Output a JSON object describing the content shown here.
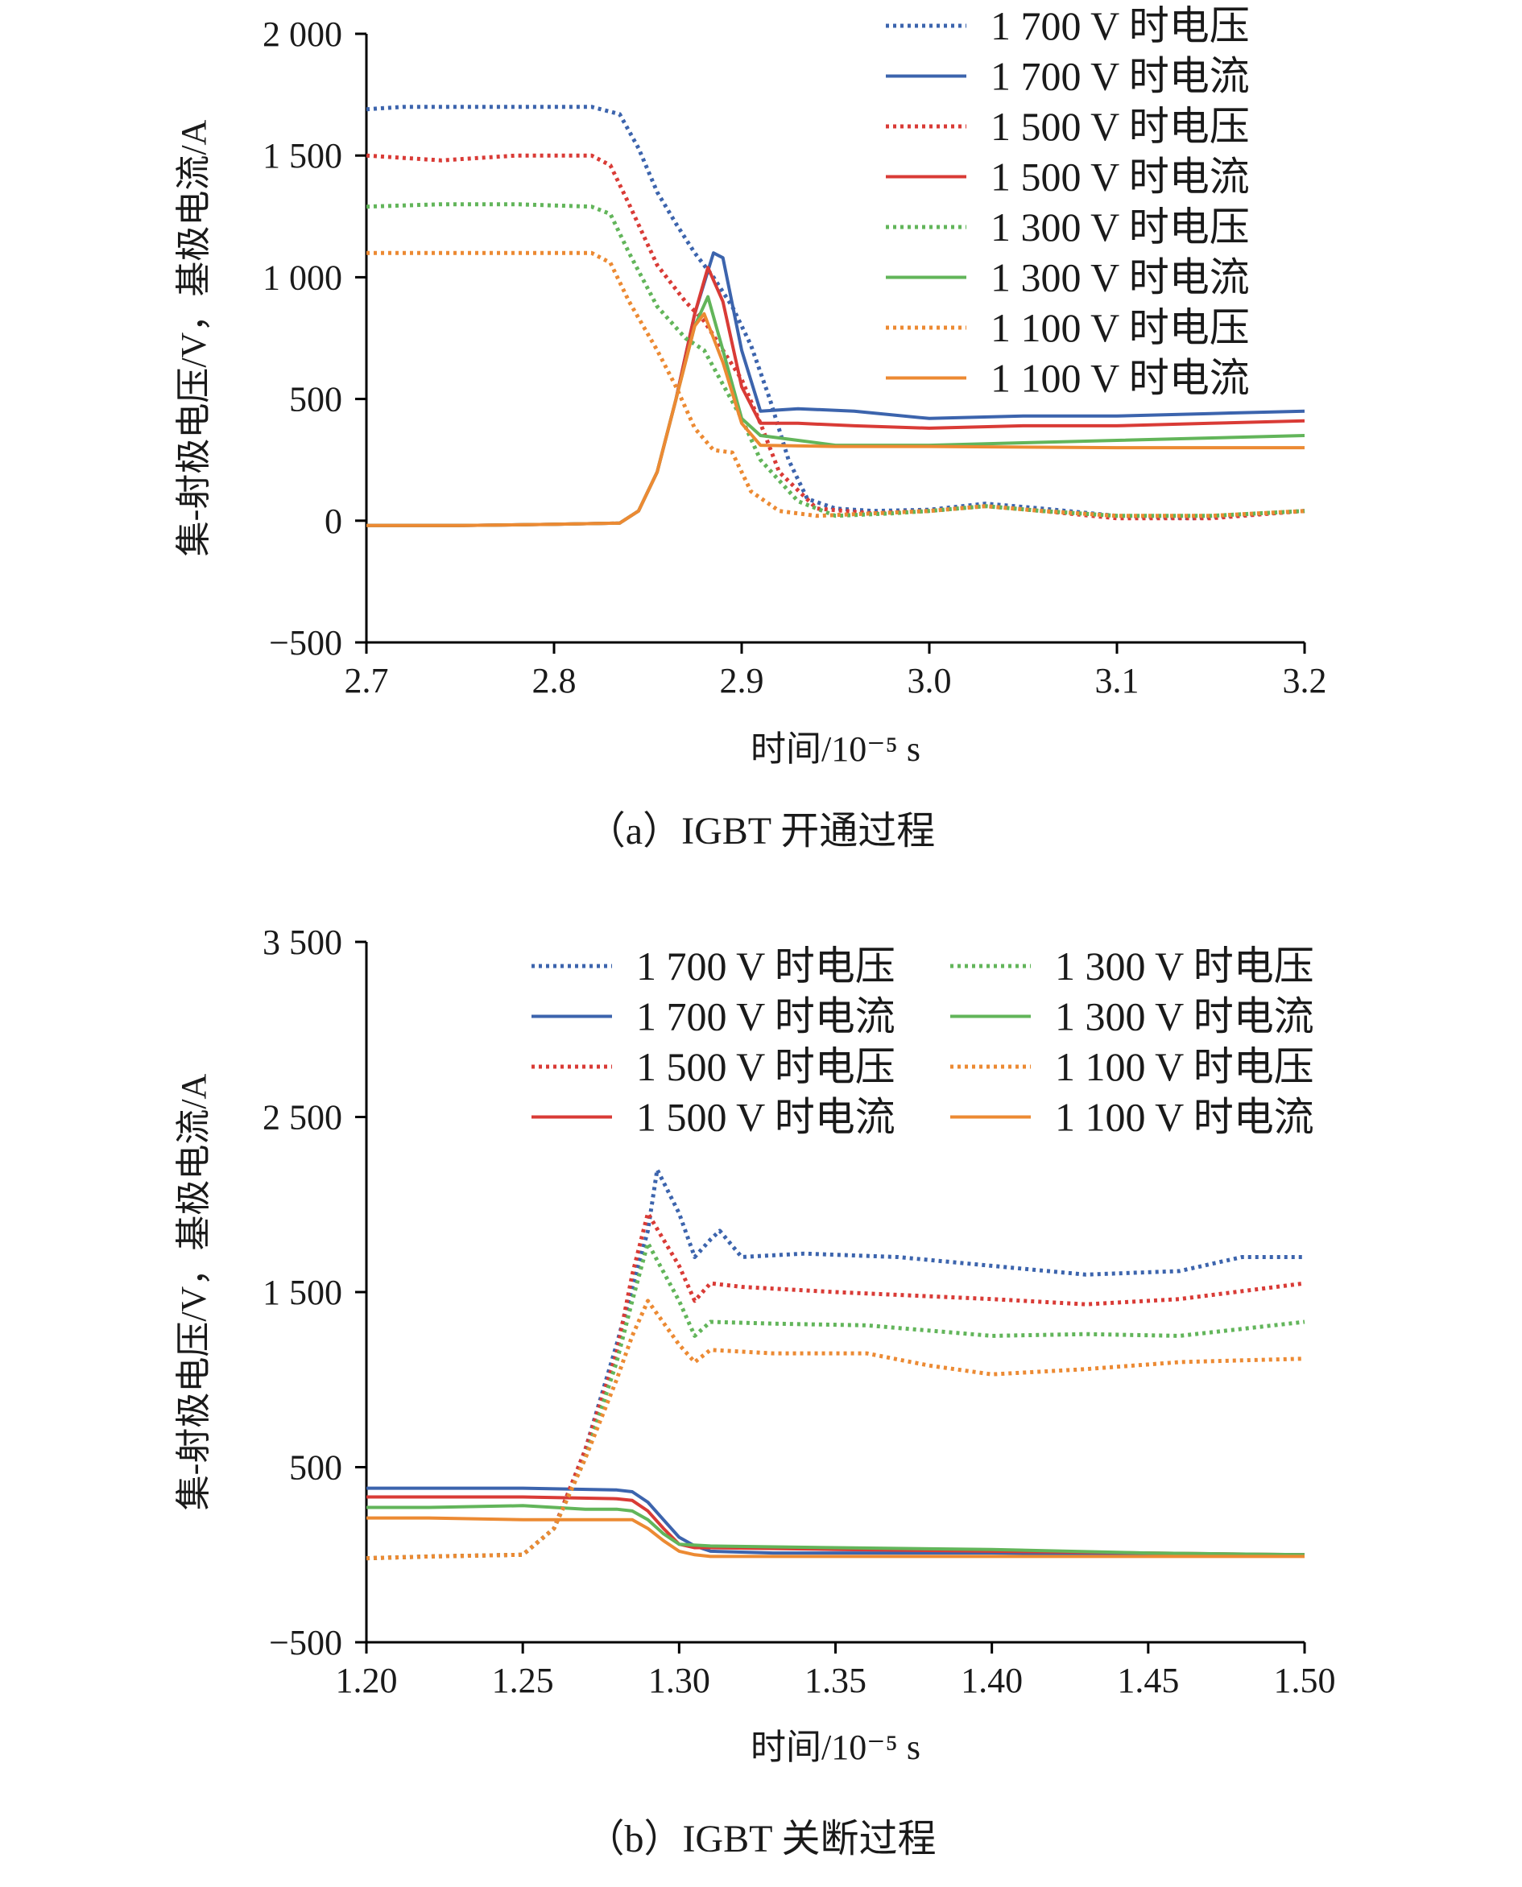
{
  "chart_data": [
    {
      "type": "line",
      "caption": "（a）IGBT 开通过程",
      "xlabel": "时间/10⁻⁵ s",
      "ylabel": "集-射极电压/V，基极电流/A",
      "xlim": [
        2.7,
        3.2
      ],
      "ylim": [
        -500,
        2000
      ],
      "xticks": [
        2.7,
        2.8,
        2.9,
        3.0,
        3.1,
        3.2
      ],
      "xtick_labels": [
        "2.7",
        "2.8",
        "2.9",
        "3.0",
        "3.1",
        "3.2"
      ],
      "yticks": [
        -500,
        0,
        500,
        1000,
        1500,
        2000
      ],
      "ytick_labels": [
        "−500",
        "0",
        "500",
        "1 000",
        "1 500",
        "2 000"
      ],
      "legend_position": "top-right",
      "legend_columns": 1,
      "series": [
        {
          "name": "1 700 V 时电压",
          "color": "#3c64ad",
          "style": "dotted",
          "x": [
            2.7,
            2.72,
            2.76,
            2.8,
            2.82,
            2.835,
            2.845,
            2.855,
            2.865,
            2.875,
            2.885,
            2.895,
            2.905,
            2.915,
            2.925,
            2.935,
            2.95,
            2.97,
            3.0,
            3.03,
            3.06,
            3.1,
            3.14,
            3.2
          ],
          "y": [
            1690,
            1700,
            1700,
            1700,
            1700,
            1670,
            1530,
            1350,
            1220,
            1100,
            1000,
            880,
            720,
            500,
            250,
            90,
            50,
            40,
            45,
            70,
            50,
            20,
            10,
            40
          ]
        },
        {
          "name": "1 700 V 时电流",
          "color": "#3c64ad",
          "style": "solid",
          "x": [
            2.7,
            2.75,
            2.8,
            2.835,
            2.845,
            2.855,
            2.865,
            2.875,
            2.885,
            2.89,
            2.9,
            2.91,
            2.93,
            2.96,
            3.0,
            3.05,
            3.1,
            3.15,
            3.2
          ],
          "y": [
            -20,
            -20,
            -15,
            -10,
            40,
            200,
            500,
            850,
            1100,
            1080,
            700,
            450,
            460,
            450,
            420,
            430,
            430,
            440,
            450
          ]
        },
        {
          "name": "1 500 V 时电压",
          "color": "#d93b36",
          "style": "dotted",
          "x": [
            2.7,
            2.74,
            2.78,
            2.82,
            2.83,
            2.84,
            2.855,
            2.87,
            2.88,
            2.89,
            2.9,
            2.91,
            2.92,
            2.94,
            2.97,
            3.0,
            3.03,
            3.06,
            3.1,
            3.15,
            3.2
          ],
          "y": [
            1500,
            1480,
            1500,
            1500,
            1460,
            1300,
            1050,
            900,
            820,
            700,
            580,
            400,
            200,
            50,
            30,
            40,
            60,
            40,
            10,
            10,
            40
          ]
        },
        {
          "name": "1 500 V 时电流",
          "color": "#d93b36",
          "style": "solid",
          "x": [
            2.7,
            2.75,
            2.8,
            2.835,
            2.845,
            2.855,
            2.865,
            2.875,
            2.882,
            2.89,
            2.9,
            2.91,
            2.93,
            2.96,
            3.0,
            3.05,
            3.1,
            3.15,
            3.2
          ],
          "y": [
            -20,
            -20,
            -15,
            -10,
            40,
            200,
            500,
            850,
            1040,
            900,
            550,
            400,
            400,
            390,
            380,
            390,
            390,
            400,
            410
          ]
        },
        {
          "name": "1 300 V 时电压",
          "color": "#62b55a",
          "style": "dotted",
          "x": [
            2.7,
            2.74,
            2.78,
            2.82,
            2.83,
            2.84,
            2.855,
            2.87,
            2.88,
            2.89,
            2.9,
            2.91,
            2.93,
            2.95,
            2.98,
            3.0,
            3.03,
            3.06,
            3.1,
            3.15,
            3.2
          ],
          "y": [
            1290,
            1300,
            1300,
            1290,
            1260,
            1100,
            880,
            750,
            700,
            560,
            420,
            250,
            80,
            20,
            30,
            40,
            60,
            40,
            20,
            20,
            40
          ]
        },
        {
          "name": "1 300 V 时电流",
          "color": "#62b55a",
          "style": "solid",
          "x": [
            2.7,
            2.75,
            2.8,
            2.835,
            2.845,
            2.855,
            2.865,
            2.875,
            2.882,
            2.89,
            2.9,
            2.91,
            2.93,
            2.95,
            3.0,
            3.05,
            3.1,
            3.2
          ],
          "y": [
            -20,
            -20,
            -15,
            -10,
            40,
            200,
            500,
            800,
            920,
            700,
            420,
            350,
            330,
            310,
            310,
            320,
            330,
            350
          ]
        },
        {
          "name": "1 100 V 时电压",
          "color": "#ec8a33",
          "style": "dotted",
          "x": [
            2.7,
            2.74,
            2.78,
            2.82,
            2.83,
            2.84,
            2.855,
            2.865,
            2.875,
            2.885,
            2.895,
            2.905,
            2.92,
            2.94,
            2.97,
            3.0,
            3.03,
            3.06,
            3.1,
            3.15,
            3.2
          ],
          "y": [
            1100,
            1100,
            1100,
            1100,
            1060,
            900,
            700,
            550,
            380,
            290,
            280,
            120,
            40,
            20,
            30,
            40,
            60,
            40,
            20,
            20,
            40
          ]
        },
        {
          "name": "1 100 V 时电流",
          "color": "#ec8a33",
          "style": "solid",
          "x": [
            2.7,
            2.75,
            2.8,
            2.835,
            2.845,
            2.855,
            2.865,
            2.875,
            2.88,
            2.89,
            2.9,
            2.91,
            2.95,
            3.0,
            3.1,
            3.2
          ],
          "y": [
            -20,
            -20,
            -15,
            -10,
            40,
            200,
            500,
            800,
            850,
            650,
            400,
            310,
            305,
            305,
            300,
            300
          ]
        }
      ]
    },
    {
      "type": "line",
      "caption": "（b）IGBT 关断过程",
      "xlabel": "时间/10⁻⁵ s",
      "ylabel": "集-射极电压/V，基极电流/A",
      "xlim": [
        1.2,
        1.5
      ],
      "ylim": [
        -500,
        3500
      ],
      "xticks": [
        1.2,
        1.25,
        1.3,
        1.35,
        1.4,
        1.45,
        1.5
      ],
      "xtick_labels": [
        "1.20",
        "1.25",
        "1.30",
        "1.35",
        "1.40",
        "1.45",
        "1.50"
      ],
      "yticks": [
        -500,
        500,
        1500,
        2500,
        3500
      ],
      "ytick_labels": [
        "−500",
        "500",
        "1 500",
        "2 500",
        "3 500"
      ],
      "legend_position": "top-right",
      "legend_columns": 2,
      "series": [
        {
          "name": "1 700 V 时电压",
          "color": "#3c64ad",
          "style": "dotted",
          "x": [
            1.2,
            1.22,
            1.25,
            1.26,
            1.27,
            1.28,
            1.29,
            1.293,
            1.3,
            1.305,
            1.31,
            1.313,
            1.32,
            1.34,
            1.37,
            1.4,
            1.43,
            1.46,
            1.48,
            1.5
          ],
          "y": [
            -20,
            -10,
            0,
            150,
            600,
            1200,
            1850,
            2200,
            1950,
            1700,
            1800,
            1850,
            1700,
            1720,
            1700,
            1650,
            1600,
            1620,
            1700,
            1700
          ]
        },
        {
          "name": "1 700 V 时电流",
          "color": "#3c64ad",
          "style": "solid",
          "x": [
            1.2,
            1.22,
            1.25,
            1.28,
            1.285,
            1.29,
            1.295,
            1.3,
            1.305,
            1.31,
            1.33,
            1.35,
            1.4,
            1.45,
            1.5
          ],
          "y": [
            380,
            380,
            380,
            370,
            360,
            300,
            200,
            100,
            50,
            20,
            10,
            10,
            10,
            0,
            0
          ]
        },
        {
          "name": "1 500 V 时电压",
          "color": "#d93b36",
          "style": "dotted",
          "x": [
            1.2,
            1.22,
            1.25,
            1.26,
            1.27,
            1.28,
            1.285,
            1.29,
            1.3,
            1.305,
            1.31,
            1.32,
            1.35,
            1.4,
            1.43,
            1.46,
            1.5
          ],
          "y": [
            -20,
            -10,
            0,
            150,
            600,
            1150,
            1600,
            1950,
            1650,
            1450,
            1550,
            1530,
            1500,
            1460,
            1430,
            1460,
            1550
          ]
        },
        {
          "name": "1 500 V 时电流",
          "color": "#d93b36",
          "style": "solid",
          "x": [
            1.2,
            1.22,
            1.25,
            1.28,
            1.285,
            1.29,
            1.295,
            1.3,
            1.305,
            1.31,
            1.35,
            1.4,
            1.45,
            1.5
          ],
          "y": [
            330,
            330,
            330,
            320,
            310,
            250,
            150,
            60,
            40,
            40,
            30,
            20,
            10,
            0
          ]
        },
        {
          "name": "1 300 V 时电压",
          "color": "#62b55a",
          "style": "dotted",
          "x": [
            1.2,
            1.22,
            1.25,
            1.26,
            1.27,
            1.28,
            1.285,
            1.29,
            1.3,
            1.305,
            1.31,
            1.33,
            1.36,
            1.4,
            1.43,
            1.46,
            1.5
          ],
          "y": [
            -20,
            -10,
            0,
            150,
            550,
            1100,
            1450,
            1780,
            1450,
            1250,
            1330,
            1320,
            1310,
            1250,
            1260,
            1250,
            1330
          ]
        },
        {
          "name": "1 300 V 时电流",
          "color": "#62b55a",
          "style": "solid",
          "x": [
            1.2,
            1.22,
            1.25,
            1.27,
            1.28,
            1.285,
            1.29,
            1.295,
            1.3,
            1.31,
            1.35,
            1.4,
            1.45,
            1.5
          ],
          "y": [
            270,
            270,
            280,
            260,
            260,
            250,
            200,
            120,
            60,
            50,
            40,
            30,
            10,
            0
          ]
        },
        {
          "name": "1 100 V 时电压",
          "color": "#ec8a33",
          "style": "dotted",
          "x": [
            1.2,
            1.22,
            1.25,
            1.26,
            1.27,
            1.28,
            1.285,
            1.29,
            1.3,
            1.305,
            1.31,
            1.33,
            1.36,
            1.38,
            1.4,
            1.43,
            1.46,
            1.5
          ],
          "y": [
            -20,
            -10,
            0,
            150,
            550,
            1000,
            1250,
            1450,
            1200,
            1100,
            1170,
            1150,
            1150,
            1080,
            1030,
            1060,
            1100,
            1120
          ]
        },
        {
          "name": "1 100 V 时电流",
          "color": "#ec8a33",
          "style": "solid",
          "x": [
            1.2,
            1.22,
            1.25,
            1.27,
            1.28,
            1.285,
            1.29,
            1.295,
            1.3,
            1.305,
            1.31,
            1.35,
            1.4,
            1.45,
            1.5
          ],
          "y": [
            210,
            210,
            200,
            200,
            200,
            200,
            150,
            80,
            20,
            0,
            -10,
            -10,
            -10,
            -10,
            -10
          ]
        }
      ]
    }
  ]
}
